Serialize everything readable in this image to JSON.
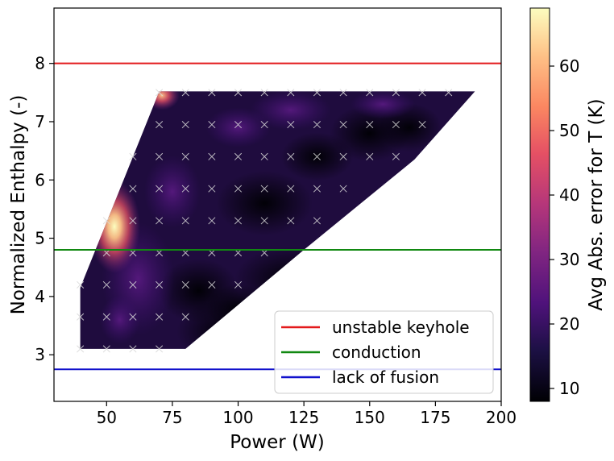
{
  "chart_data": {
    "type": "heatmap",
    "xlabel": "Power (W)",
    "ylabel": "Normalized Enthalpy (-)",
    "xlim": [
      30,
      200
    ],
    "ylim": [
      2.2,
      8.95
    ],
    "xticks": [
      50,
      75,
      100,
      125,
      150,
      175,
      200
    ],
    "yticks": [
      3,
      4,
      5,
      6,
      7,
      8
    ],
    "colorbar": {
      "label": "Avg Abs. error for T (K)",
      "range": [
        8,
        69
      ],
      "ticks": [
        10,
        20,
        30,
        40,
        50,
        60
      ],
      "colormap": "magma"
    },
    "region_outline": [
      [
        40,
        3.1
      ],
      [
        40,
        4.15
      ],
      [
        70,
        7.52
      ],
      [
        190,
        7.52
      ],
      [
        167,
        6.35
      ],
      [
        125,
        4.8
      ],
      [
        80,
        3.1
      ]
    ],
    "hot_spots": [
      {
        "power": 53,
        "enthalpy": 5.2,
        "value": 68
      },
      {
        "power": 71,
        "enthalpy": 7.45,
        "value": 55
      }
    ],
    "reference_lines": [
      {
        "name": "unstable keyhole",
        "enthalpy": 8.0,
        "color": "#e31a1c"
      },
      {
        "name": "conduction",
        "enthalpy": 4.8,
        "color": "#118811"
      },
      {
        "name": "lack of fusion",
        "enthalpy": 2.75,
        "color": "#1111cc"
      }
    ],
    "legend": {
      "position": "lower-right",
      "entries": [
        "unstable keyhole",
        "conduction",
        "lack of fusion"
      ]
    },
    "sample_points": [
      {
        "power": 40,
        "enthalpy": 3.1
      },
      {
        "power": 50,
        "enthalpy": 3.1
      },
      {
        "power": 60,
        "enthalpy": 3.1
      },
      {
        "power": 70,
        "enthalpy": 3.1
      },
      {
        "power": 40,
        "enthalpy": 3.65
      },
      {
        "power": 50,
        "enthalpy": 3.65
      },
      {
        "power": 60,
        "enthalpy": 3.65
      },
      {
        "power": 70,
        "enthalpy": 3.65
      },
      {
        "power": 80,
        "enthalpy": 3.65
      },
      {
        "power": 40,
        "enthalpy": 4.2
      },
      {
        "power": 50,
        "enthalpy": 4.2
      },
      {
        "power": 60,
        "enthalpy": 4.2
      },
      {
        "power": 70,
        "enthalpy": 4.2
      },
      {
        "power": 80,
        "enthalpy": 4.2
      },
      {
        "power": 90,
        "enthalpy": 4.2
      },
      {
        "power": 100,
        "enthalpy": 4.2
      },
      {
        "power": 50,
        "enthalpy": 4.75
      },
      {
        "power": 60,
        "enthalpy": 4.75
      },
      {
        "power": 70,
        "enthalpy": 4.75
      },
      {
        "power": 80,
        "enthalpy": 4.75
      },
      {
        "power": 90,
        "enthalpy": 4.75
      },
      {
        "power": 100,
        "enthalpy": 4.75
      },
      {
        "power": 110,
        "enthalpy": 4.75
      },
      {
        "power": 50,
        "enthalpy": 5.3
      },
      {
        "power": 60,
        "enthalpy": 5.3
      },
      {
        "power": 70,
        "enthalpy": 5.3
      },
      {
        "power": 80,
        "enthalpy": 5.3
      },
      {
        "power": 90,
        "enthalpy": 5.3
      },
      {
        "power": 100,
        "enthalpy": 5.3
      },
      {
        "power": 110,
        "enthalpy": 5.3
      },
      {
        "power": 120,
        "enthalpy": 5.3
      },
      {
        "power": 130,
        "enthalpy": 5.3
      },
      {
        "power": 60,
        "enthalpy": 5.85
      },
      {
        "power": 70,
        "enthalpy": 5.85
      },
      {
        "power": 80,
        "enthalpy": 5.85
      },
      {
        "power": 90,
        "enthalpy": 5.85
      },
      {
        "power": 100,
        "enthalpy": 5.85
      },
      {
        "power": 110,
        "enthalpy": 5.85
      },
      {
        "power": 120,
        "enthalpy": 5.85
      },
      {
        "power": 130,
        "enthalpy": 5.85
      },
      {
        "power": 140,
        "enthalpy": 5.85
      },
      {
        "power": 60,
        "enthalpy": 6.4
      },
      {
        "power": 70,
        "enthalpy": 6.4
      },
      {
        "power": 80,
        "enthalpy": 6.4
      },
      {
        "power": 90,
        "enthalpy": 6.4
      },
      {
        "power": 100,
        "enthalpy": 6.4
      },
      {
        "power": 110,
        "enthalpy": 6.4
      },
      {
        "power": 120,
        "enthalpy": 6.4
      },
      {
        "power": 130,
        "enthalpy": 6.4
      },
      {
        "power": 140,
        "enthalpy": 6.4
      },
      {
        "power": 150,
        "enthalpy": 6.4
      },
      {
        "power": 160,
        "enthalpy": 6.4
      },
      {
        "power": 70,
        "enthalpy": 6.95
      },
      {
        "power": 80,
        "enthalpy": 6.95
      },
      {
        "power": 90,
        "enthalpy": 6.95
      },
      {
        "power": 100,
        "enthalpy": 6.95
      },
      {
        "power": 110,
        "enthalpy": 6.95
      },
      {
        "power": 120,
        "enthalpy": 6.95
      },
      {
        "power": 130,
        "enthalpy": 6.95
      },
      {
        "power": 140,
        "enthalpy": 6.95
      },
      {
        "power": 150,
        "enthalpy": 6.95
      },
      {
        "power": 160,
        "enthalpy": 6.95
      },
      {
        "power": 170,
        "enthalpy": 6.95
      },
      {
        "power": 70,
        "enthalpy": 7.5
      },
      {
        "power": 80,
        "enthalpy": 7.5
      },
      {
        "power": 90,
        "enthalpy": 7.5
      },
      {
        "power": 100,
        "enthalpy": 7.5
      },
      {
        "power": 110,
        "enthalpy": 7.5
      },
      {
        "power": 120,
        "enthalpy": 7.5
      },
      {
        "power": 130,
        "enthalpy": 7.5
      },
      {
        "power": 140,
        "enthalpy": 7.5
      },
      {
        "power": 150,
        "enthalpy": 7.5
      },
      {
        "power": 160,
        "enthalpy": 7.5
      },
      {
        "power": 170,
        "enthalpy": 7.5
      },
      {
        "power": 180,
        "enthalpy": 7.5
      }
    ]
  }
}
